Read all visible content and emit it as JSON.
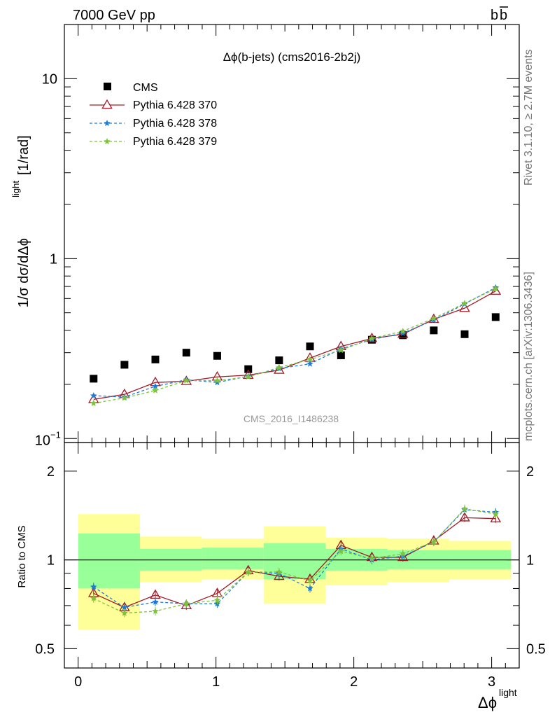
{
  "header": {
    "left": "7000 GeV pp",
    "right_base": "b",
    "right_bar": "b"
  },
  "side": {
    "top": "Rivet 3.1.10, ≥ 2.7M events",
    "bottom": "mcplots.cern.ch [arXiv:1306.3436]"
  },
  "chart_data": [
    {
      "type": "scatter",
      "title": "Δϕ(b-jets) (cms2016-2b2j)",
      "watermark": "CMS_2016_I1486238",
      "ylabel_main": "1/σ dσ/dΔϕ",
      "ylabel_sup": "light",
      "ylabel_unit": "[1/rad]",
      "yscale": "log",
      "ylim": [
        0.095,
        20
      ],
      "xlim": [
        -0.1,
        3.2
      ],
      "ytick_labels": [
        "10",
        "1",
        "10"
      ],
      "ytick_exp": "−1",
      "legend_position": "top-left",
      "x": [
        0.112,
        0.336,
        0.56,
        0.785,
        1.009,
        1.234,
        1.458,
        1.682,
        1.907,
        2.131,
        2.356,
        2.58,
        2.804,
        3.029
      ],
      "series": [
        {
          "name": "CMS",
          "marker": "square",
          "color": "#000000",
          "values": [
            0.215,
            0.257,
            0.275,
            0.3,
            0.288,
            0.243,
            0.272,
            0.325,
            0.29,
            0.354,
            0.375,
            0.399,
            0.38,
            0.473
          ]
        },
        {
          "name": "Pythia 6.428 370",
          "marker": "triangle",
          "color": "#a31a26",
          "values": [
            0.165,
            0.176,
            0.205,
            0.208,
            0.22,
            0.225,
            0.24,
            0.28,
            0.325,
            0.36,
            0.38,
            0.46,
            0.53,
            0.66
          ]
        },
        {
          "name": "Pythia 6.428 378",
          "marker": "star",
          "color": "#1f7bd8",
          "values": [
            0.173,
            0.17,
            0.195,
            0.212,
            0.205,
            0.222,
            0.245,
            0.26,
            0.315,
            0.355,
            0.385,
            0.455,
            0.56,
            0.69
          ]
        },
        {
          "name": "Pythia 6.428 379",
          "marker": "star",
          "color": "#7ec43b",
          "values": [
            0.157,
            0.168,
            0.185,
            0.21,
            0.21,
            0.22,
            0.248,
            0.275,
            0.31,
            0.36,
            0.395,
            0.465,
            0.565,
            0.68
          ]
        }
      ]
    },
    {
      "type": "scatter",
      "ylabel": "Ratio to CMS",
      "xlabel": "Δϕ",
      "xlabel_sup": "light",
      "yscale": "log",
      "ylim": [
        0.43,
        2.5
      ],
      "ytick_labels": [
        "2",
        "1",
        "0.5"
      ],
      "ytick_right_labels": [
        "2",
        "1",
        "0.5"
      ],
      "xtick_labels": [
        "0",
        "1",
        "2",
        "3"
      ],
      "bins": [
        {
          "lo": 0.0,
          "hi": 0.448,
          "yellow": [
            0.58,
            1.43
          ],
          "green": [
            0.8,
            1.23
          ]
        },
        {
          "lo": 0.448,
          "hi": 0.897,
          "yellow": [
            0.84,
            1.2
          ],
          "green": [
            0.92,
            1.09
          ]
        },
        {
          "lo": 0.897,
          "hi": 1.346,
          "yellow": [
            0.86,
            1.18
          ],
          "green": [
            0.93,
            1.1
          ]
        },
        {
          "lo": 1.346,
          "hi": 1.795,
          "yellow": [
            0.71,
            1.3
          ],
          "green": [
            0.86,
            1.14
          ]
        },
        {
          "lo": 1.795,
          "hi": 2.243,
          "yellow": [
            0.82,
            1.19
          ],
          "green": [
            0.92,
            1.09
          ]
        },
        {
          "lo": 2.243,
          "hi": 2.692,
          "yellow": [
            0.84,
            1.18
          ],
          "green": [
            0.93,
            1.08
          ]
        },
        {
          "lo": 2.692,
          "hi": 3.141,
          "yellow": [
            0.86,
            1.16
          ],
          "green": [
            0.93,
            1.08
          ]
        }
      ],
      "series": [
        {
          "name": "Pythia 6.428 370",
          "color": "#a31a26",
          "values": [
            0.77,
            0.69,
            0.76,
            0.7,
            0.77,
            0.92,
            0.88,
            0.86,
            1.12,
            1.02,
            1.02,
            1.16,
            1.39,
            1.38
          ]
        },
        {
          "name": "Pythia 6.428 378",
          "color": "#1f7bd8",
          "values": [
            0.81,
            0.69,
            0.72,
            0.71,
            0.71,
            0.91,
            0.9,
            0.8,
            1.09,
            1.0,
            1.03,
            1.15,
            1.48,
            1.45
          ]
        },
        {
          "name": "Pythia 6.428 379",
          "color": "#7ec43b",
          "values": [
            0.74,
            0.66,
            0.67,
            0.71,
            0.73,
            0.91,
            0.91,
            0.85,
            1.07,
            1.01,
            1.05,
            1.15,
            1.49,
            1.43
          ]
        }
      ]
    }
  ]
}
